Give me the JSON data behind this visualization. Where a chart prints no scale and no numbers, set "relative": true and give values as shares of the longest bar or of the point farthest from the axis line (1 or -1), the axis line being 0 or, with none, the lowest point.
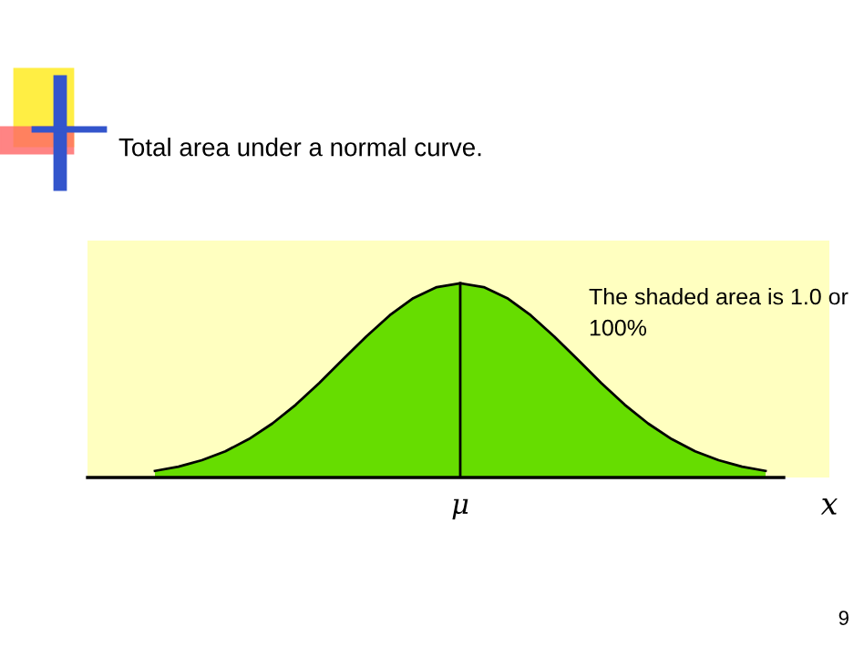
{
  "chart_data": {
    "type": "area",
    "title": "Total area under a normal curve.",
    "xlabel": "x",
    "categories": [
      null,
      null,
      null,
      null,
      null,
      null,
      null,
      null,
      null,
      null,
      null,
      null,
      null,
      null,
      null,
      null,
      null,
      null,
      null,
      null,
      null,
      null,
      null,
      null,
      null,
      null,
      null
    ],
    "series": [
      {
        "color": "#66dd00",
        "values": [
          0.034,
          0.056,
          0.089,
          0.135,
          0.198,
          0.278,
          0.375,
          0.487,
          0.607,
          0.726,
          0.835,
          0.923,
          0.98,
          1,
          0.98,
          0.923,
          0.835,
          0.726,
          0.607,
          0.487,
          0.375,
          0.278,
          0.198,
          0.135,
          0.089,
          0.056,
          0.034
        ]
      }
    ],
    "relative": true,
    "ref_lines": [
      {
        "axis": "x",
        "label": "μ",
        "color": "#000000"
      }
    ],
    "annotations": [
      "The shaded area is 1.0 or 100%",
      "9"
    ],
    "legend": false
  }
}
